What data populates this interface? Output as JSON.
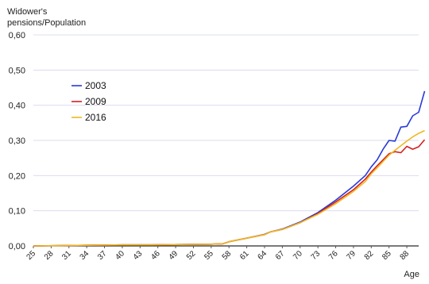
{
  "chart_data": {
    "type": "line",
    "ylabel_lines": [
      "Widower's",
      "pensions/Population"
    ],
    "xlabel": "Age",
    "ylim": [
      0,
      0.6
    ],
    "yticks": [
      "0,00",
      "0,10",
      "0,20",
      "0,30",
      "0,40",
      "0,50",
      "0,60"
    ],
    "ytick_values": [
      0,
      0.1,
      0.2,
      0.3,
      0.4,
      0.5,
      0.6
    ],
    "xlim": [
      25,
      90
    ],
    "xticks": [
      25,
      28,
      31,
      34,
      37,
      40,
      43,
      46,
      49,
      52,
      55,
      58,
      61,
      64,
      67,
      70,
      73,
      76,
      79,
      82,
      85,
      88
    ],
    "grid": true,
    "legend_position": "upper-left",
    "series": [
      {
        "name": "2003",
        "color": "#2a3ad6",
        "points": [
          [
            25,
            0
          ],
          [
            30,
            0.001
          ],
          [
            35,
            0.002
          ],
          [
            40,
            0.003
          ],
          [
            45,
            0.003
          ],
          [
            50,
            0.004
          ],
          [
            55,
            0.005
          ],
          [
            57,
            0.006
          ],
          [
            58,
            0.012
          ],
          [
            61,
            0.022
          ],
          [
            64,
            0.033
          ],
          [
            65,
            0.04
          ],
          [
            67,
            0.048
          ],
          [
            70,
            0.068
          ],
          [
            73,
            0.095
          ],
          [
            76,
            0.13
          ],
          [
            79,
            0.17
          ],
          [
            81,
            0.2
          ],
          [
            82,
            0.225
          ],
          [
            83,
            0.245
          ],
          [
            84,
            0.275
          ],
          [
            85,
            0.3
          ],
          [
            86,
            0.298
          ],
          [
            87,
            0.338
          ],
          [
            88,
            0.34
          ],
          [
            89,
            0.37
          ],
          [
            90,
            0.38
          ],
          [
            91,
            0.44
          ]
        ]
      },
      {
        "name": "2009",
        "color": "#d42020",
        "points": [
          [
            25,
            0
          ],
          [
            30,
            0.001
          ],
          [
            35,
            0.002
          ],
          [
            40,
            0.003
          ],
          [
            45,
            0.003
          ],
          [
            50,
            0.004
          ],
          [
            55,
            0.005
          ],
          [
            57,
            0.006
          ],
          [
            58,
            0.012
          ],
          [
            61,
            0.022
          ],
          [
            64,
            0.032
          ],
          [
            65,
            0.04
          ],
          [
            67,
            0.047
          ],
          [
            70,
            0.066
          ],
          [
            73,
            0.092
          ],
          [
            76,
            0.125
          ],
          [
            79,
            0.16
          ],
          [
            81,
            0.19
          ],
          [
            82,
            0.21
          ],
          [
            83,
            0.228
          ],
          [
            84,
            0.245
          ],
          [
            85,
            0.262
          ],
          [
            86,
            0.268
          ],
          [
            87,
            0.265
          ],
          [
            88,
            0.283
          ],
          [
            89,
            0.275
          ],
          [
            90,
            0.282
          ],
          [
            91,
            0.302
          ]
        ]
      },
      {
        "name": "2016",
        "color": "#f0b820",
        "points": [
          [
            25,
            0
          ],
          [
            30,
            0.001
          ],
          [
            35,
            0.002
          ],
          [
            40,
            0.003
          ],
          [
            45,
            0.003
          ],
          [
            50,
            0.004
          ],
          [
            55,
            0.005
          ],
          [
            57,
            0.006
          ],
          [
            58,
            0.012
          ],
          [
            61,
            0.022
          ],
          [
            64,
            0.032
          ],
          [
            65,
            0.04
          ],
          [
            67,
            0.047
          ],
          [
            70,
            0.066
          ],
          [
            73,
            0.09
          ],
          [
            76,
            0.12
          ],
          [
            79,
            0.155
          ],
          [
            81,
            0.183
          ],
          [
            82,
            0.205
          ],
          [
            83,
            0.222
          ],
          [
            84,
            0.24
          ],
          [
            85,
            0.258
          ],
          [
            86,
            0.272
          ],
          [
            87,
            0.285
          ],
          [
            88,
            0.298
          ],
          [
            89,
            0.31
          ],
          [
            90,
            0.32
          ],
          [
            91,
            0.328
          ]
        ]
      }
    ]
  }
}
